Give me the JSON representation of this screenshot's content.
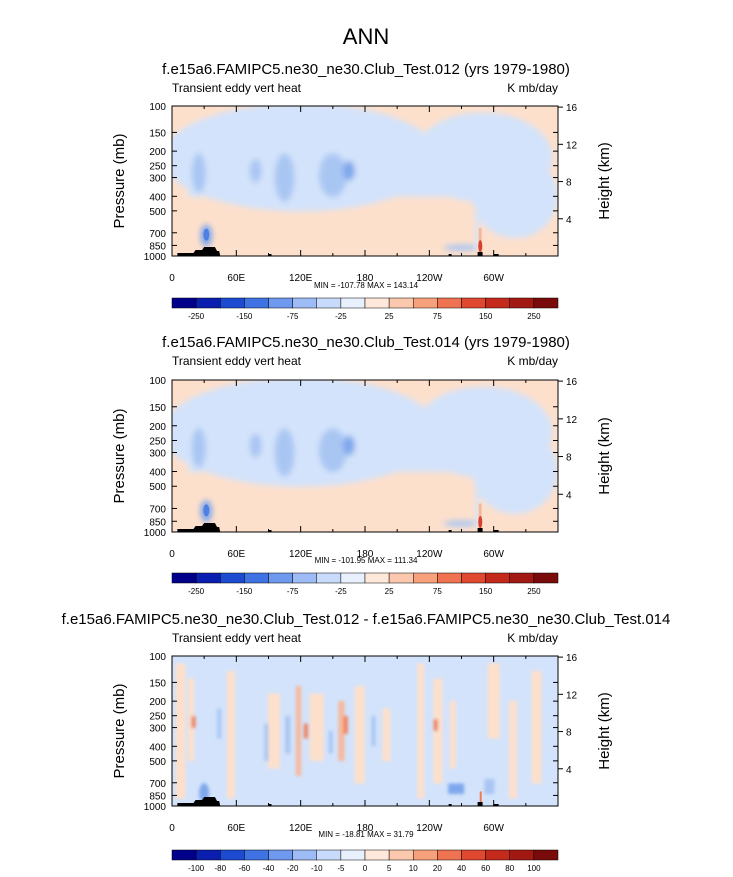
{
  "page": {
    "title": "ANN"
  },
  "colors": {
    "pos_light": "#fde0cc",
    "neg_light": "#d3e3fb",
    "neg_mid": "#a9c6f3",
    "neg_strong": "#7fa7ec",
    "neg_deep": "#4f7fe0",
    "pos_mid": "#f7b79a",
    "pos_strong": "#ee7d56",
    "pos_deep": "#d8402a",
    "topo": "#000000",
    "frame": "#000000"
  },
  "chart_data": [
    {
      "type": "heatmap",
      "title": "f.e15a6.FAMIPC5.ne30_ne30.Club_Test.012 (yrs 1979-1980)",
      "left_label": "Transient eddy vert heat",
      "right_label": "K mb/day",
      "ylabel": "Pressure (mb)",
      "ylabel_right": "Height (km)",
      "y_ticks": [
        "100",
        "150",
        "200",
        "250",
        "300",
        "400",
        "500",
        "700",
        "850",
        "1000"
      ],
      "y_ticks_right": [
        "16",
        "12",
        "8",
        "4"
      ],
      "x_ticks": [
        "0",
        "60E",
        "120E",
        "180",
        "120W",
        "60W"
      ],
      "stats": "MIN = -107.78  MAX = 143.14",
      "colorbar_labels": [
        "-250",
        "-150",
        "-75",
        "-25",
        "25",
        "75",
        "150",
        "250"
      ],
      "colorbar_colors": [
        "#00008b",
        "#0a1fb0",
        "#1c4bd1",
        "#3f73e3",
        "#6f98ef",
        "#9dbcf6",
        "#c9dbfb",
        "#e8f0fd",
        "#fde8da",
        "#fcc8ad",
        "#f7a07c",
        "#ef7350",
        "#e0492f",
        "#c42a1c",
        "#a21812",
        "#7a0b0b"
      ],
      "xlim": [
        0,
        360
      ],
      "ylim": [
        1000,
        100
      ],
      "min": -107.78,
      "max": 143.14
    },
    {
      "type": "heatmap",
      "title": "f.e15a6.FAMIPC5.ne30_ne30.Club_Test.014 (yrs 1979-1980)",
      "left_label": "Transient eddy vert heat",
      "right_label": "K mb/day",
      "ylabel": "Pressure (mb)",
      "ylabel_right": "Height (km)",
      "y_ticks": [
        "100",
        "150",
        "200",
        "250",
        "300",
        "400",
        "500",
        "700",
        "850",
        "1000"
      ],
      "y_ticks_right": [
        "16",
        "12",
        "8",
        "4"
      ],
      "x_ticks": [
        "0",
        "60E",
        "120E",
        "180",
        "120W",
        "60W"
      ],
      "stats": "MIN = -101.95  MAX = 111.34",
      "colorbar_labels": [
        "-250",
        "-150",
        "-75",
        "-25",
        "25",
        "75",
        "150",
        "250"
      ],
      "colorbar_colors": [
        "#00008b",
        "#0a1fb0",
        "#1c4bd1",
        "#3f73e3",
        "#6f98ef",
        "#9dbcf6",
        "#c9dbfb",
        "#e8f0fd",
        "#fde8da",
        "#fcc8ad",
        "#f7a07c",
        "#ef7350",
        "#e0492f",
        "#c42a1c",
        "#a21812",
        "#7a0b0b"
      ],
      "xlim": [
        0,
        360
      ],
      "ylim": [
        1000,
        100
      ],
      "min": -101.95,
      "max": 111.34
    },
    {
      "type": "heatmap",
      "title": "f.e15a6.FAMIPC5.ne30_ne30.Club_Test.012 - f.e15a6.FAMIPC5.ne30_ne30.Club_Test.014",
      "left_label": "Transient eddy vert heat",
      "right_label": "K mb/day",
      "ylabel": "Pressure (mb)",
      "ylabel_right": "Height (km)",
      "y_ticks": [
        "100",
        "150",
        "200",
        "250",
        "300",
        "400",
        "500",
        "700",
        "850",
        "1000"
      ],
      "y_ticks_right": [
        "16",
        "12",
        "8",
        "4"
      ],
      "x_ticks": [
        "0",
        "60E",
        "120E",
        "180",
        "120W",
        "60W"
      ],
      "stats": "MIN = -18.81  MAX =  31.79",
      "colorbar_labels": [
        "-100",
        "-80",
        "-60",
        "-40",
        "-20",
        "-10",
        "-5",
        "0",
        "5",
        "10",
        "20",
        "40",
        "60",
        "80",
        "100"
      ],
      "colorbar_colors": [
        "#00008b",
        "#0a1fb0",
        "#1c4bd1",
        "#3f73e3",
        "#6f98ef",
        "#9dbcf6",
        "#c9dbfb",
        "#e8f0fd",
        "#fde8da",
        "#fcc8ad",
        "#f7a07c",
        "#ef7350",
        "#e0492f",
        "#c42a1c",
        "#a21812",
        "#7a0b0b"
      ],
      "xlim": [
        0,
        360
      ],
      "ylim": [
        1000,
        100
      ],
      "min": -18.81,
      "max": 31.79
    }
  ]
}
